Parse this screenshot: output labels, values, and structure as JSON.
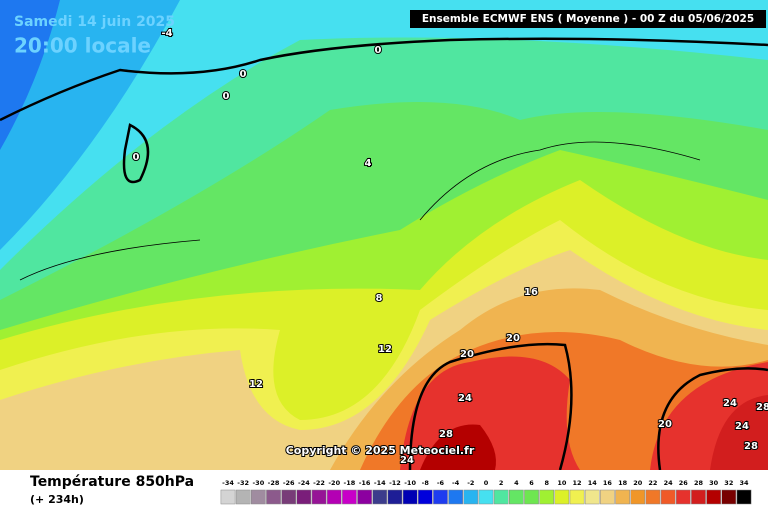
{
  "header": {
    "date": "Samedi 14 juin 2025",
    "time": "20:00 locale",
    "model": "Ensemble ECMWF ENS  ( Moyenne )  -  00 Z du 05/06/2025"
  },
  "copyright": "Copyright © 2025 Meteociel.fr",
  "contour_labels": [
    -4,
    0,
    0,
    0,
    0,
    4,
    8,
    12,
    12,
    16,
    20,
    20,
    20,
    24,
    24,
    24,
    24,
    28,
    28,
    28
  ],
  "footer": {
    "title": "Température 850hPa",
    "lead": "(+ 234h)"
  },
  "legend": {
    "scale": [
      -34,
      -32,
      -30,
      -28,
      -26,
      -24,
      -22,
      -20,
      -18,
      -16,
      -14,
      -12,
      -10,
      -8,
      -6,
      -4,
      -2,
      0,
      2,
      4,
      6,
      8,
      10,
      12,
      14,
      16,
      18,
      20,
      22,
      24,
      26,
      28,
      30,
      32,
      34
    ],
    "colors": [
      "#d4d4d4",
      "#b4b4b4",
      "#a08ca0",
      "#8c5a8c",
      "#783c78",
      "#7a1e7a",
      "#961496",
      "#b400b4",
      "#c800c8",
      "#8c00a0",
      "#3c3c8c",
      "#1e1e96",
      "#0000b4",
      "#0000dc",
      "#1e3cf0",
      "#1e78f0",
      "#28b4f0",
      "#46e0f0",
      "#50e6a0",
      "#64e664",
      "#6ee650",
      "#a0f032",
      "#dcf028",
      "#f0f050",
      "#f0e68c",
      "#f0d282",
      "#f0b450",
      "#f09628",
      "#f07828",
      "#f05a28",
      "#e6322d",
      "#d21e1e",
      "#b40000",
      "#780000",
      "#000000"
    ]
  }
}
